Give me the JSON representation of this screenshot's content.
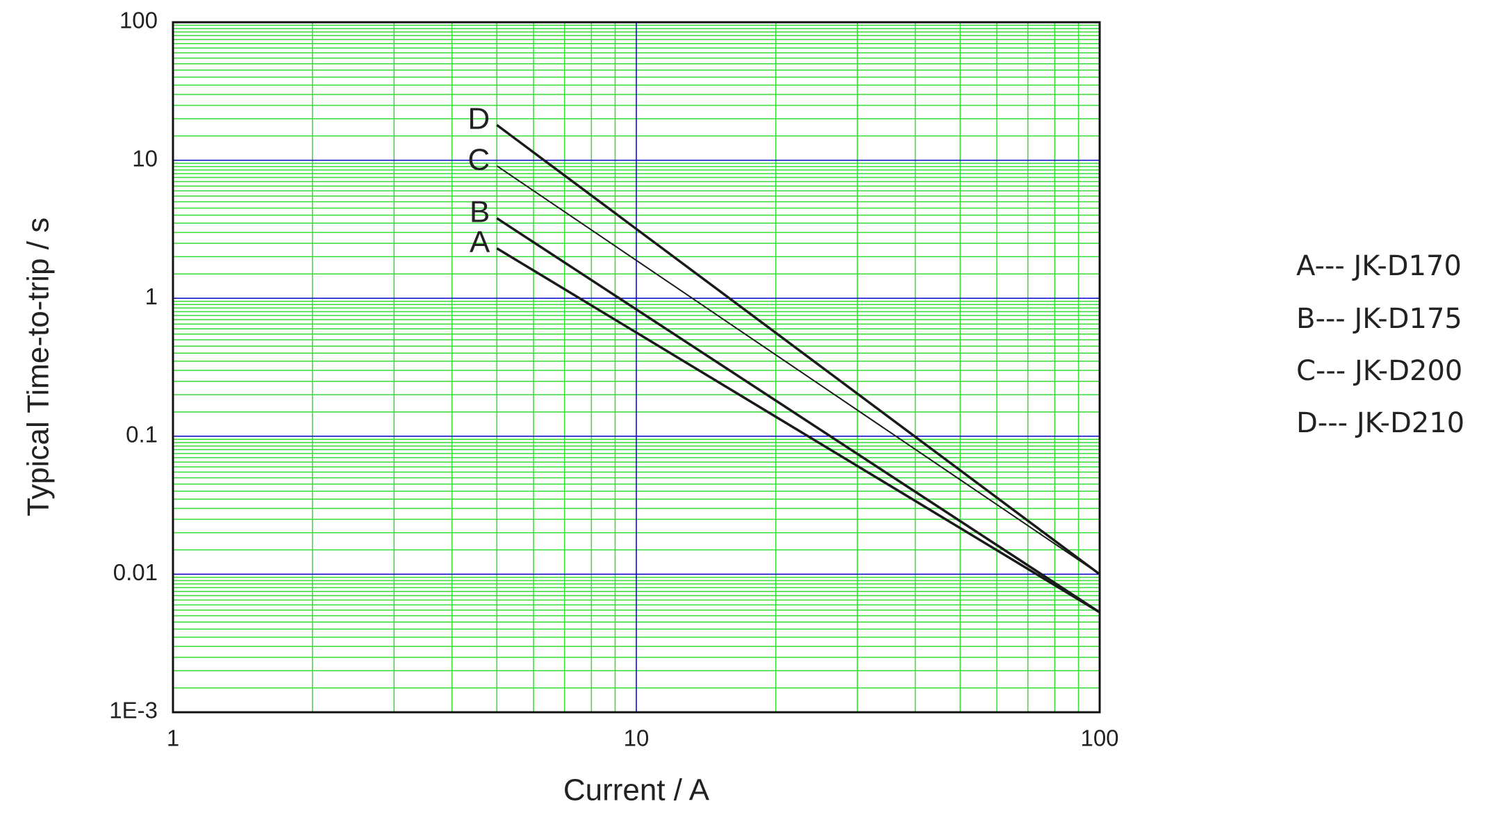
{
  "chart_data": {
    "type": "line",
    "xlabel": "Current / A",
    "ylabel": "Typical Time-to-trip / s",
    "x": [
      5,
      100
    ],
    "series": [
      {
        "name": "A--- JK-D170",
        "label": "A",
        "color": "#1a1a1a",
        "values": [
          2.3,
          0.0053
        ]
      },
      {
        "name": "B--- JK-D175",
        "label": "B",
        "color": "#1a1a1a",
        "values": [
          3.8,
          0.0053
        ]
      },
      {
        "name": "C--- JK-D200",
        "label": "C",
        "color": "#1a1a1a",
        "values": [
          9.1,
          0.01
        ]
      },
      {
        "name": "D--- JK-D210",
        "label": "D",
        "color": "#1a1a1a",
        "values": [
          18,
          0.01
        ]
      }
    ],
    "xlim": [
      1,
      100
    ],
    "xticks": [
      1,
      10,
      100
    ],
    "ylim": [
      0.001,
      100
    ],
    "yticks": [
      100,
      10,
      1,
      0.1,
      0.01,
      {
        "value": 0.001,
        "label": "1E-3"
      }
    ],
    "xscale": "log",
    "yscale": "log",
    "grid": true,
    "grid_color": "#0000c8",
    "minor_grid": true,
    "minor_grid_color": "#33dd33",
    "legend": "right"
  }
}
